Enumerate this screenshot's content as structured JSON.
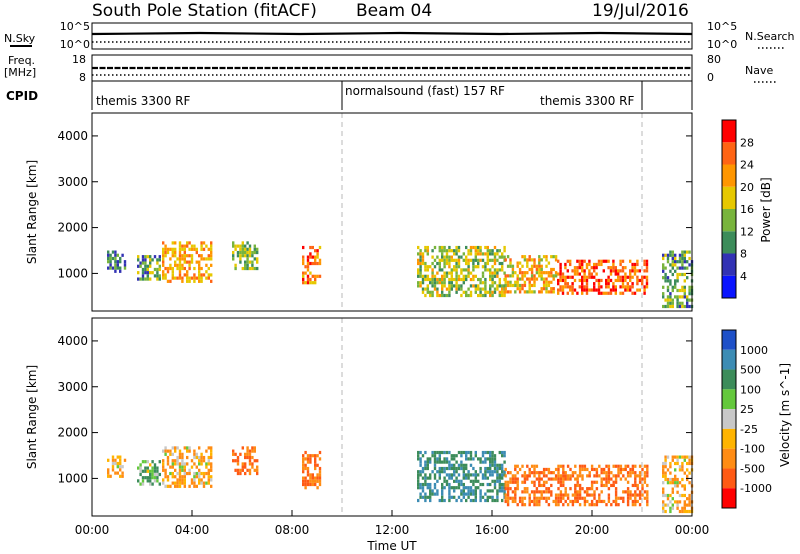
{
  "header": {
    "station": "South Pole Station (fitACF)",
    "beam": "Beam 04",
    "date": "19/Jul/2016"
  },
  "top_panels": {
    "nsky_label": "N.Sky",
    "nsky_ticks": [
      "10^5",
      "10^0"
    ],
    "nsearch_label": "N.Search",
    "nsearch_ticks": [
      "10^5",
      "10^0"
    ],
    "freq_label_1": "Freq.",
    "freq_label_2": "[MHz]",
    "freq_ticks": [
      "18",
      "8"
    ],
    "nave_label": "Nave",
    "nave_ticks": [
      "80",
      "0"
    ],
    "cpid_label": "CPID",
    "cpid_segments": [
      {
        "text": "themis 3300 RF",
        "start_hour": 0,
        "end_hour": 10
      },
      {
        "text": "normalsound (fast) 157 RF",
        "start_hour": 10,
        "end_hour": 22
      },
      {
        "text": "themis 3300 RF",
        "start_hour": 22,
        "end_hour": 24
      }
    ]
  },
  "chart_data": [
    {
      "type": "heatmap",
      "name": "power",
      "ylabel": "Slant Range [km]",
      "yticks": [
        "1000",
        "2000",
        "3000",
        "4000"
      ],
      "ylim": [
        180,
        4500
      ],
      "xlim": [
        0,
        24
      ],
      "colorbar_label": "Power [dB]",
      "colorbar_ticks": [
        "4",
        "8",
        "12",
        "16",
        "20",
        "24",
        "28"
      ],
      "colorbar_colors": [
        "#0a14ff",
        "#3232b4",
        "#3c8c5a",
        "#78b43c",
        "#e6c800",
        "#ff9600",
        "#ff6414",
        "#ff0000"
      ],
      "echo_regions": [
        {
          "t0": 0.6,
          "t1": 1.3,
          "r0": 1050,
          "r1": 1500,
          "value": 10
        },
        {
          "t0": 1.8,
          "t1": 2.7,
          "r0": 900,
          "r1": 1400,
          "value": 12
        },
        {
          "t0": 2.8,
          "t1": 4.8,
          "r0": 800,
          "r1": 1700,
          "value": 22
        },
        {
          "t0": 5.6,
          "t1": 6.6,
          "r0": 1100,
          "r1": 1700,
          "value": 14
        },
        {
          "t0": 8.4,
          "t1": 9.1,
          "r0": 800,
          "r1": 1600,
          "value": 24
        },
        {
          "t0": 13.0,
          "t1": 16.5,
          "r0": 500,
          "r1": 1600,
          "value": 16
        },
        {
          "t0": 16.5,
          "t1": 18.6,
          "r0": 600,
          "r1": 1400,
          "value": 20
        },
        {
          "t0": 18.6,
          "t1": 22.2,
          "r0": 600,
          "r1": 1300,
          "value": 26
        },
        {
          "t0": 22.8,
          "t1": 24.0,
          "r0": 300,
          "r1": 1500,
          "value": 12
        }
      ]
    },
    {
      "type": "heatmap",
      "name": "velocity",
      "ylabel": "Slant Range [km]",
      "yticks": [
        "1000",
        "2000",
        "3000",
        "4000"
      ],
      "ylim": [
        180,
        4500
      ],
      "xlim": [
        0,
        24
      ],
      "xlabel": "Time UT",
      "xticks": [
        "00:00",
        "04:00",
        "08:00",
        "12:00",
        "16:00",
        "20:00",
        "00:00"
      ],
      "colorbar_label": "Velocity [m s^-1]",
      "colorbar_ticks": [
        "1000",
        "500",
        "100",
        "25",
        "-25",
        "-100",
        "-500",
        "-1000"
      ],
      "colorbar_colors": [
        "#1e50c8",
        "#3c8cb4",
        "#3c8c5a",
        "#64c83c",
        "#c8c8c8",
        "#ffb400",
        "#ff8c14",
        "#ff5a14",
        "#ff0000"
      ],
      "echo_regions": [
        {
          "t0": 0.6,
          "t1": 1.3,
          "r0": 1050,
          "r1": 1500,
          "value": -100
        },
        {
          "t0": 1.8,
          "t1": 2.7,
          "r0": 900,
          "r1": 1400,
          "value": 100
        },
        {
          "t0": 2.8,
          "t1": 4.8,
          "r0": 800,
          "r1": 1700,
          "value": -100
        },
        {
          "t0": 5.6,
          "t1": 6.6,
          "r0": 1100,
          "r1": 1700,
          "value": -500
        },
        {
          "t0": 8.4,
          "t1": 9.1,
          "r0": 800,
          "r1": 1600,
          "value": -500
        },
        {
          "t0": 13.0,
          "t1": 16.5,
          "r0": 500,
          "r1": 1600,
          "value": 500
        },
        {
          "t0": 16.5,
          "t1": 22.2,
          "r0": 400,
          "r1": 1300,
          "value": -500
        },
        {
          "t0": 22.8,
          "t1": 24.0,
          "r0": 300,
          "r1": 1500,
          "value": -100
        }
      ]
    }
  ]
}
